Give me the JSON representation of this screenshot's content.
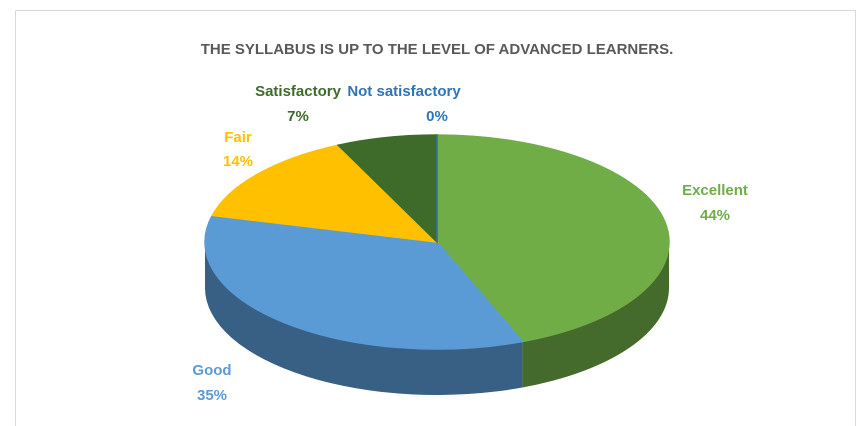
{
  "chart_data": {
    "type": "pie",
    "title": "THE SYLLABUS IS UP TO THE LEVEL OF ADVANCED LEARNERS.",
    "categories": [
      "Excellent",
      "Good",
      "Fair",
      "Satisfactory",
      "Not satisfactory"
    ],
    "values": [
      44,
      35,
      14,
      7,
      0
    ],
    "value_labels": [
      "44%",
      "35%",
      "14%",
      "7%",
      "0%"
    ],
    "colors": [
      "#70ad47",
      "#5b9bd5",
      "#ffc000",
      "#3e6b2a",
      "#2e75b6"
    ]
  }
}
